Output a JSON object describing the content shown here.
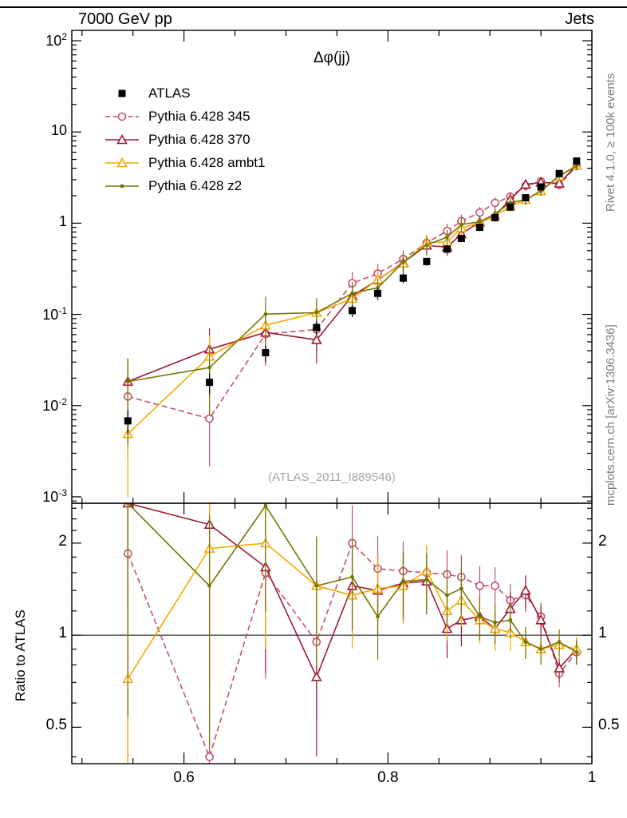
{
  "header": {
    "left": "7000 GeV pp",
    "right": "Jets"
  },
  "side_notes": {
    "rivet": "Rivet 4.1.0, ≥ 100k events",
    "mcplots": "mcplots.cern.ch [arXiv:1306.3436]"
  },
  "watermark": "(ATLAS_2011_I889546)",
  "chart_data": {
    "type": "line",
    "title": "Δφ(jj)",
    "x_label": "",
    "x": [
      0.545,
      0.625,
      0.68,
      0.73,
      0.765,
      0.79,
      0.815,
      0.838,
      0.858,
      0.872,
      0.89,
      0.905,
      0.92,
      0.935,
      0.95,
      0.968,
      0.985
    ],
    "xlim": [
      0.49,
      1.0
    ],
    "x_major_ticks": [
      0.6,
      0.8,
      1
    ],
    "x_tick_labels": [
      "0.6",
      "0.8",
      "1"
    ],
    "main": {
      "yscale": "log",
      "ylim": [
        0.00085,
        130
      ],
      "y_major_tick_exponents": [
        -3,
        -2,
        -1,
        0,
        1,
        2
      ],
      "data_series": {
        "name": "ATLAS",
        "marker": "square-filled",
        "color": "#000000",
        "values": [
          0.0068,
          0.018,
          0.038,
          0.072,
          0.11,
          0.17,
          0.25,
          0.38,
          0.52,
          0.68,
          0.9,
          1.15,
          1.5,
          1.9,
          2.5,
          3.5,
          4.8
        ],
        "rel_err": [
          0.3,
          0.25,
          0.2,
          0.18,
          0.15,
          0.13,
          0.12,
          0.1,
          0.09,
          0.08,
          0.08,
          0.07,
          0.07,
          0.06,
          0.06,
          0.05,
          0.05
        ]
      },
      "note": "MC curve values in the main panel equal ratio_to_data × ATLAS values"
    },
    "ratio": {
      "ylabel": "Ratio to ATLAS",
      "yscale": "log",
      "ylim": [
        0.38,
        2.7
      ],
      "ticks": [
        0.5,
        1,
        2
      ],
      "tick_labels": [
        "0.5",
        "1",
        "2"
      ],
      "minor_ticks": [
        0.4,
        0.6,
        0.7,
        0.8,
        0.9,
        1.2,
        1.4,
        1.6,
        1.8,
        2.2,
        2.4,
        2.6
      ],
      "baseline": 1
    },
    "mc_rel_err": [
      0.8,
      0.7,
      0.55,
      0.45,
      0.33,
      0.28,
      0.25,
      0.22,
      0.2,
      0.18,
      0.16,
      0.15,
      0.13,
      0.12,
      0.11,
      0.1,
      0.09
    ],
    "mc_series": [
      {
        "name": "Pythia 6.428 345",
        "color": "#c2506a",
        "line": "dashed",
        "marker": "circle-open",
        "ratio_to_data": [
          1.85,
          0.4,
          1.6,
          0.95,
          2.0,
          1.65,
          1.62,
          1.6,
          1.58,
          1.55,
          1.45,
          1.45,
          1.3,
          1.35,
          1.15,
          0.75,
          0.88
        ]
      },
      {
        "name": "Pythia 6.428 370",
        "color": "#9e1b32",
        "line": "solid",
        "marker": "triangle-open",
        "ratio_to_data": [
          2.7,
          2.3,
          1.67,
          0.73,
          1.45,
          1.4,
          1.48,
          1.5,
          1.05,
          1.12,
          1.15,
          1.05,
          1.22,
          1.4,
          1.12,
          0.78,
          0.9
        ]
      },
      {
        "name": "Pythia 6.428 ambt1",
        "color": "#f5a700",
        "line": "solid",
        "marker": "triangle-open",
        "ratio_to_data": [
          0.72,
          1.92,
          2.0,
          1.45,
          1.35,
          1.42,
          1.45,
          1.62,
          1.2,
          1.3,
          1.12,
          1.05,
          1.02,
          0.95,
          0.9,
          0.93,
          0.9
        ]
      },
      {
        "name": "Pythia 6.428 z2",
        "color": "#757500",
        "line": "solid",
        "marker": "dot",
        "ratio_to_data": [
          2.7,
          1.45,
          2.65,
          1.45,
          1.55,
          1.15,
          1.5,
          1.52,
          1.35,
          1.42,
          1.15,
          1.1,
          1.12,
          0.95,
          0.9,
          0.95,
          0.88
        ]
      }
    ],
    "legend_position": "top-left",
    "grid": false
  }
}
